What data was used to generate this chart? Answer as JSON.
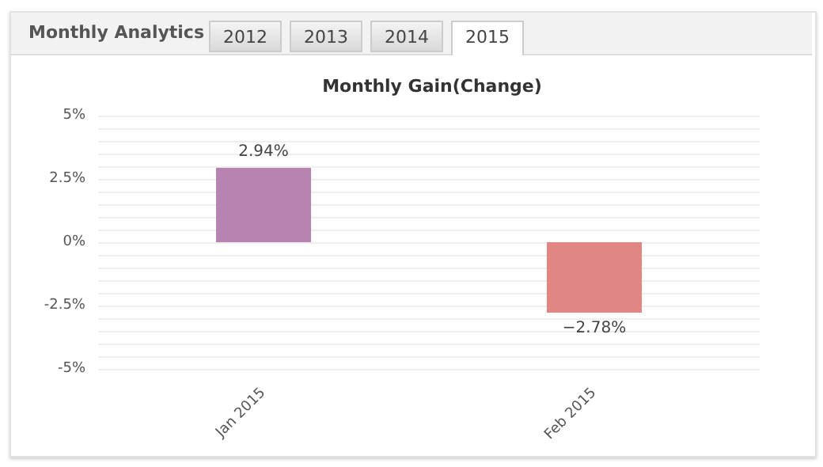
{
  "chart_data": {
    "type": "bar",
    "title": "Monthly Gain(Change)",
    "annotations": [
      "Monthly Analytics",
      "2012",
      "2013",
      "2014",
      "2015"
    ],
    "categories": [
      "Jan 2015",
      "Feb 2015"
    ],
    "values": [
      2.94,
      -2.78
    ],
    "value_labels": [
      "2.94%",
      "−2.78%"
    ],
    "colors": [
      "#b784b2",
      "#e28684"
    ],
    "ylim": [
      -5,
      5
    ],
    "yticks": [
      {
        "value": -5,
        "label": "-5%"
      },
      {
        "value": -4.5,
        "label": null
      },
      {
        "value": -4,
        "label": null
      },
      {
        "value": -3.5,
        "label": null
      },
      {
        "value": -3,
        "label": null
      },
      {
        "value": -2.5,
        "label": "-2.5%"
      },
      {
        "value": -2,
        "label": null
      },
      {
        "value": -1.5,
        "label": null
      },
      {
        "value": -1,
        "label": null
      },
      {
        "value": -0.5,
        "label": null
      },
      {
        "value": 0,
        "label": "0%"
      },
      {
        "value": 0.5,
        "label": null
      },
      {
        "value": 1,
        "label": null
      },
      {
        "value": 1.5,
        "label": null
      },
      {
        "value": 2,
        "label": null
      },
      {
        "value": 2.5,
        "label": "2.5%"
      },
      {
        "value": 3,
        "label": null
      },
      {
        "value": 3.5,
        "label": null
      },
      {
        "value": 4,
        "label": null
      },
      {
        "value": 4.5,
        "label": null
      },
      {
        "value": 5,
        "label": "5%"
      }
    ],
    "grid": true
  }
}
